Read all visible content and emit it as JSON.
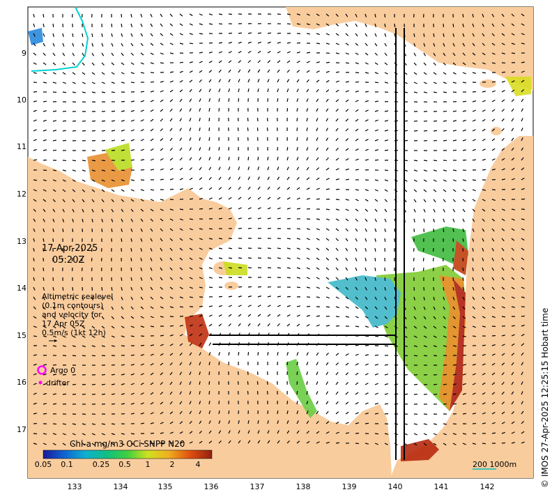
{
  "map": {
    "date": "17-Apr-2025",
    "time": "05:20Z",
    "legend_text": [
      "Altimetric sealevel",
      "(0.1m contours)",
      "and velocity for",
      "17 Apr 05Z",
      "0.5m/s (1kt 12h)"
    ],
    "argo_label": "Argo 0",
    "drifter_label": "drifter",
    "colorbar_title": "Chl-a mg/m3 OCi SNPP N20",
    "colorbar_ticks": [
      "0.05",
      "0.1",
      "0.25",
      "0.5",
      "1",
      "2",
      "4"
    ],
    "scalebar_label": "200  1000m",
    "timestamp": "© IMOS 27-Apr-2025 12:25:15 Hobart time",
    "lat_ticks": [
      "9",
      "10",
      "11",
      "12",
      "13",
      "14",
      "15",
      "16",
      "17"
    ],
    "lon_ticks": [
      "133",
      "134",
      "135",
      "136",
      "137",
      "138",
      "139",
      "140",
      "141",
      "142"
    ],
    "colors": {
      "land": "#f9cc9d",
      "ocean": "#ffffff",
      "contour": "#00d0d0",
      "argo": "#ff00ff"
    }
  }
}
